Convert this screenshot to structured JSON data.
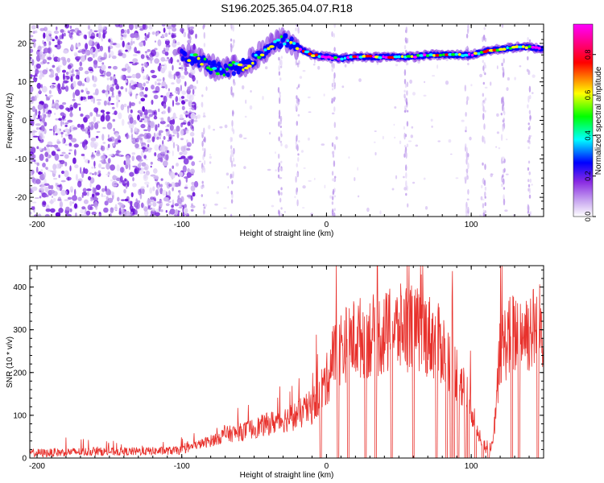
{
  "title": "S196.2025.365.04.07.R18",
  "chart_data": [
    {
      "type": "heatmap",
      "xlabel": "Height of straight line (km)",
      "ylabel": "Frequency (Hz)",
      "xlim": [
        -205,
        150
      ],
      "ylim": [
        -25,
        25
      ],
      "xticks": [
        -200,
        -100,
        0,
        100
      ],
      "yticks": [
        -20,
        -10,
        0,
        10,
        20
      ],
      "colorbar": {
        "label": "Normalized spectral amplitude",
        "range": [
          0,
          0.95
        ],
        "ticks": [
          0.0,
          0.2,
          0.4,
          0.6,
          0.8
        ],
        "colors": [
          "#ffffff",
          "#8a2be2",
          "#0000ff",
          "#00ffff",
          "#00ff00",
          "#ffff00",
          "#ff0000",
          "#ff00ff"
        ]
      },
      "ridge": {
        "x": [
          -100,
          -90,
          -80,
          -70,
          -60,
          -50,
          -40,
          -30,
          -20,
          -10,
          0,
          10,
          20,
          30,
          40,
          50,
          60,
          70,
          80,
          90,
          100,
          110,
          120,
          130,
          140,
          150
        ],
        "y": [
          17,
          16,
          14,
          13,
          14,
          16,
          19,
          21,
          19,
          17,
          16.5,
          16,
          16.5,
          16.5,
          16.5,
          16.5,
          16.5,
          17,
          17,
          17,
          17,
          18,
          18.5,
          19,
          19,
          18.5
        ]
      },
      "noise_region_x": [
        -205,
        -90
      ]
    },
    {
      "type": "line",
      "xlabel": "Height of straight line (km)",
      "ylabel": "SNR (10 * v/v)",
      "xlim": [
        -205,
        150
      ],
      "ylim": [
        0,
        450
      ],
      "xticks": [
        -200,
        -100,
        0,
        100
      ],
      "yticks": [
        0,
        100,
        200,
        300,
        400
      ],
      "line_color": "#e8312c",
      "series": [
        {
          "x": [
            -205,
            -190,
            -180,
            -160,
            -140,
            -120,
            -100,
            -90,
            -80,
            -70,
            -60,
            -50,
            -40,
            -30,
            -20,
            -10,
            0,
            5,
            10,
            20,
            30,
            40,
            50,
            55,
            60,
            70,
            80,
            90,
            100,
            105,
            110,
            115,
            120,
            125,
            130,
            140,
            150
          ],
          "values": [
            12,
            12,
            14,
            15,
            15,
            16,
            18,
            30,
            40,
            55,
            60,
            70,
            80,
            90,
            100,
            120,
            180,
            240,
            260,
            280,
            285,
            290,
            300,
            310,
            300,
            290,
            260,
            200,
            120,
            60,
            20,
            30,
            250,
            280,
            290,
            300,
            310
          ]
        }
      ],
      "gaps_x": [
        -4,
        8,
        15,
        27,
        34,
        45,
        60,
        76,
        83,
        86,
        88,
        91,
        96,
        98,
        103,
        108,
        112,
        128,
        133,
        146
      ]
    }
  ]
}
